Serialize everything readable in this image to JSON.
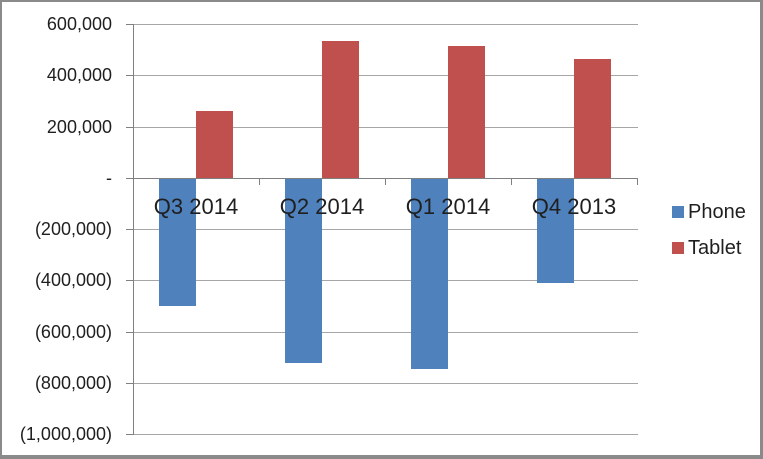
{
  "chart_data": {
    "type": "bar",
    "title": "",
    "orientation": "vertical-clustered",
    "categories": [
      "Q3 2014",
      "Q2 2014",
      "Q1 2014",
      "Q4 2013"
    ],
    "series": [
      {
        "name": "Phone",
        "color": "#4F81BD",
        "values": [
          -500000,
          -720000,
          -745000,
          -410000
        ]
      },
      {
        "name": "Tablet",
        "color": "#C0504D",
        "values": [
          260000,
          535000,
          515000,
          465000
        ]
      }
    ],
    "xlabel": "",
    "ylabel": "",
    "ylim": [
      -1000000,
      600000
    ],
    "y_tick_interval": 200000,
    "y_tick_labels": [
      "600,000",
      "400,000",
      "200,000",
      "-",
      "(200,000)",
      "(400,000)",
      "(600,000)",
      "(800,000)",
      "(1,000,000)"
    ],
    "grid": true,
    "negative_number_format": "parentheses",
    "legend": {
      "position": "right",
      "entries": [
        "Phone",
        "Tablet"
      ]
    }
  },
  "colors": {
    "phone": "#4F81BD",
    "tablet": "#C0504D",
    "gridline": "#A6A6A6",
    "axis": "#808080",
    "text": "#1F1F1F",
    "frame_border": "#8A8A8A",
    "background": "#FFFFFF"
  }
}
